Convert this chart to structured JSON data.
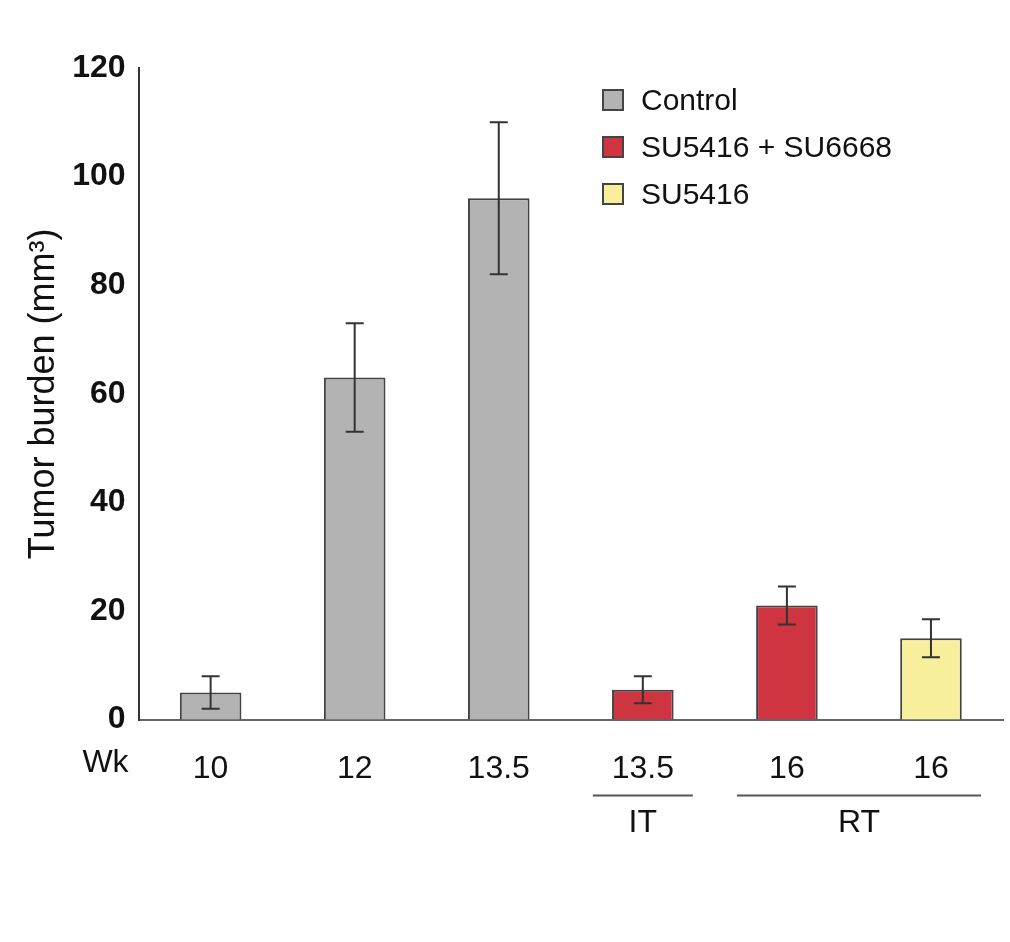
{
  "chart_data": {
    "type": "bar",
    "ylabel": "Tumor burden (mm³)",
    "xlabel": "Wk",
    "categories": [
      "10",
      "12",
      "13.5",
      "13.5",
      "16",
      "16"
    ],
    "series": [
      {
        "name": "Control",
        "color": "#b3b3b3",
        "values": [
          5,
          63,
          96,
          null,
          null,
          null
        ],
        "errors": [
          3,
          10,
          14,
          null,
          null,
          null
        ]
      },
      {
        "name": "SU5416 + SU6668",
        "color": "#cf3540",
        "values": [
          null,
          null,
          null,
          5.5,
          21,
          null
        ],
        "errors": [
          null,
          null,
          null,
          2.5,
          3.5,
          null
        ]
      },
      {
        "name": "SU5416",
        "color": "#f7ef9c",
        "values": [
          null,
          null,
          null,
          null,
          null,
          15
        ],
        "errors": [
          null,
          null,
          null,
          null,
          null,
          3.5
        ]
      }
    ],
    "ylim": [
      0,
      120
    ],
    "yticks": [
      0,
      20,
      40,
      60,
      80,
      100,
      120
    ],
    "grid": false,
    "legend": "top right",
    "annotations": [
      "IT",
      "RT"
    ]
  }
}
